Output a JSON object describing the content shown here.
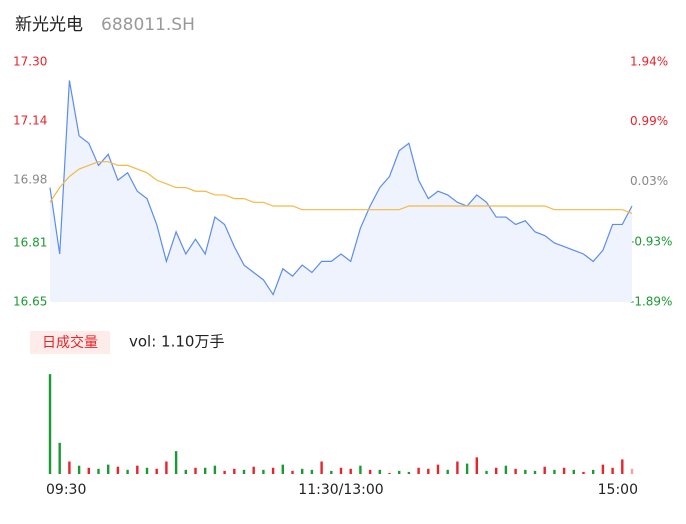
{
  "chart_data": {
    "type": "intraday",
    "name": "新光光电",
    "code": "688011.SH",
    "xlim": [
      0,
      240
    ],
    "xticks": [
      {
        "value": 0,
        "label": "09:30"
      },
      {
        "value": 120,
        "label": "11:30/13:00"
      },
      {
        "value": 240,
        "label": "15:00"
      }
    ],
    "ylim": [
      16.65,
      17.3
    ],
    "yticks": [
      16.65,
      16.81,
      16.98,
      17.14,
      {
        "value": 17.3,
        "label": "17.30"
      }
    ],
    "y2lim": [
      -1.89,
      1.94
    ],
    "y2ticks": [
      {
        "value": -1.89,
        "label": "-1.89%"
      },
      {
        "value": -0.93,
        "label": "-0.93%"
      },
      {
        "value": 0.03,
        "label": "0.03%"
      },
      {
        "value": 0.99,
        "label": "0.99%"
      },
      {
        "value": 1.94,
        "label": "1.94%"
      }
    ],
    "up_color": "#e8232a",
    "down_color": "#1a9a33",
    "flat_color": "#888888",
    "x": [
      0,
      4,
      8,
      12,
      16,
      20,
      24,
      28,
      32,
      36,
      40,
      44,
      48,
      52,
      56,
      60,
      64,
      68,
      72,
      76,
      80,
      84,
      88,
      92,
      96,
      100,
      104,
      108,
      112,
      116,
      120,
      124,
      128,
      132,
      136,
      140,
      144,
      148,
      152,
      156,
      160,
      164,
      168,
      172,
      176,
      180,
      184,
      188,
      192,
      196,
      200,
      204,
      208,
      212,
      216,
      220,
      224,
      228,
      232,
      236,
      240
    ],
    "series": [
      {
        "color": "#5b8def",
        "values": [
          16.96,
          16.78,
          17.25,
          17.1,
          17.08,
          17.02,
          17.05,
          16.98,
          17.0,
          16.95,
          16.93,
          16.86,
          16.76,
          16.84,
          16.78,
          16.82,
          16.78,
          16.88,
          16.86,
          16.8,
          16.75,
          16.73,
          16.71,
          16.67,
          16.74,
          16.72,
          16.75,
          16.73,
          16.76,
          16.76,
          16.78,
          16.76,
          16.85,
          16.91,
          16.96,
          16.99,
          17.06,
          17.08,
          16.98,
          16.93,
          16.95,
          16.94,
          16.92,
          16.91,
          16.94,
          16.92,
          16.88,
          16.88,
          16.86,
          16.87,
          16.84,
          16.83,
          16.81,
          16.8,
          16.79,
          16.78,
          16.76,
          16.79,
          16.86,
          16.86,
          16.91
        ]
      },
      {
        "color": "#f5b942",
        "values": [
          16.92,
          16.96,
          16.99,
          17.01,
          17.02,
          17.03,
          17.03,
          17.02,
          17.02,
          17.01,
          17.0,
          16.98,
          16.97,
          16.96,
          16.96,
          16.95,
          16.95,
          16.94,
          16.94,
          16.93,
          16.93,
          16.92,
          16.92,
          16.91,
          16.91,
          16.91,
          16.9,
          16.9,
          16.9,
          16.9,
          16.9,
          16.9,
          16.9,
          16.9,
          16.9,
          16.9,
          16.9,
          16.91,
          16.91,
          16.91,
          16.91,
          16.91,
          16.91,
          16.91,
          16.91,
          16.91,
          16.91,
          16.91,
          16.91,
          16.91,
          16.91,
          16.91,
          16.9,
          16.9,
          16.9,
          16.9,
          16.9,
          16.9,
          16.9,
          16.9,
          16.89
        ]
      }
    ],
    "volume_title": "日成交量",
    "volume_text": "vol: 1.10万手",
    "volume_ylim": [
      0,
      500
    ],
    "volume": [
      480,
      150,
      60,
      40,
      30,
      25,
      45,
      35,
      20,
      40,
      30,
      25,
      60,
      110,
      20,
      30,
      30,
      40,
      15,
      25,
      20,
      35,
      20,
      30,
      45,
      15,
      25,
      20,
      60,
      15,
      30,
      25,
      40,
      20,
      20,
      5,
      15,
      10,
      30,
      25,
      45,
      20,
      60,
      50,
      80,
      15,
      30,
      40,
      25,
      20,
      15,
      35,
      20,
      30,
      20,
      10,
      20,
      45,
      30,
      70,
      25
    ],
    "volume_colors": [
      "#1a9a33",
      "#1a9a33",
      "#e8232a",
      "#1a9a33",
      "#e8232a",
      "#1a9a33",
      "#1a9a33",
      "#e8232a",
      "#1a9a33",
      "#e8232a",
      "#1a9a33",
      "#e8232a",
      "#e8232a",
      "#1a9a33",
      "#1a9a33",
      "#e8232a",
      "#1a9a33",
      "#1a9a33",
      "#e8232a",
      "#e8232a",
      "#1a9a33",
      "#e8232a",
      "#1a9a33",
      "#e8232a",
      "#1a9a33",
      "#e8232a",
      "#1a9a33",
      "#1a9a33",
      "#e8232a",
      "#1a9a33",
      "#e8232a",
      "#e8232a",
      "#1a9a33",
      "#e8232a",
      "#1a9a33",
      "#e8232a",
      "#1a9a33",
      "#1a9a33",
      "#e8232a",
      "#e8232a",
      "#e8232a",
      "#1a9a33",
      "#e8232a",
      "#1a9a33",
      "#e8232a",
      "#1a9a33",
      "#e8232a",
      "#1a9a33",
      "#e8232a",
      "#1a9a33",
      "#1a9a33",
      "#e8232a",
      "#1a9a33",
      "#e8232a",
      "#1a9a33",
      "#e8232a",
      "#1a9a33",
      "#e8232a",
      "#e8232a",
      "#e8232a",
      "#f4a0a8"
    ]
  }
}
